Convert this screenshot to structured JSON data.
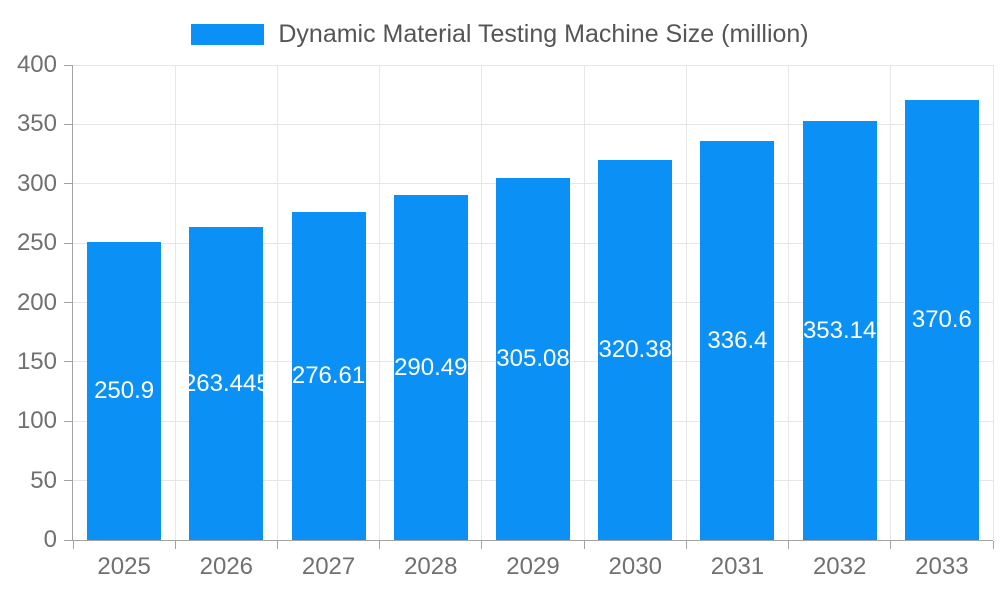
{
  "chart_data": {
    "type": "bar",
    "title": "Dynamic Material Testing Machine Size (million)",
    "legend_label": "Dynamic Material Testing Machine Size (million)",
    "legend_position": "top-center",
    "categories": [
      "2025",
      "2026",
      "2027",
      "2028",
      "2029",
      "2030",
      "2031",
      "2032",
      "2033"
    ],
    "series": [
      {
        "name": "Dynamic Material Testing Machine Size (million)",
        "values": [
          250.9,
          263.445,
          276.61,
          290.49,
          305.08,
          320.38,
          336.4,
          353.14,
          370.6
        ]
      }
    ],
    "xlabel": "",
    "ylabel": "",
    "ylim": [
      0,
      400
    ],
    "ytick_step": 50,
    "yticks": [
      0,
      50,
      100,
      150,
      200,
      250,
      300,
      350,
      400
    ],
    "grid": true,
    "value_label_position": "inside-middle",
    "colors": {
      "bar": "#0b90f5",
      "grid_line": "#e6e6e6",
      "axis_line": "#a3a3a3",
      "axis_label": "#707070",
      "legend_text": "#555555",
      "value_label": "#ffffff",
      "background": "#ffffff"
    }
  }
}
